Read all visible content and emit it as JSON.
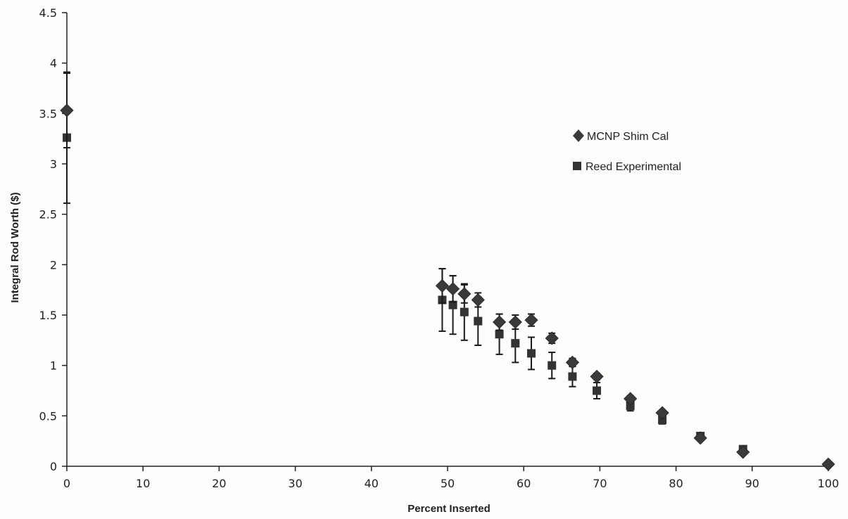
{
  "chart_data": {
    "type": "scatter",
    "title": "",
    "xlabel": "Percent Inserted",
    "ylabel": "Integral Rod Worth ($)",
    "xlim": [
      0,
      100
    ],
    "ylim": [
      0,
      4.5
    ],
    "x_ticks": [
      0,
      10,
      20,
      30,
      40,
      50,
      60,
      70,
      80,
      90,
      100
    ],
    "y_ticks": [
      0,
      0.5,
      1,
      1.5,
      2,
      2.5,
      3,
      3.5,
      4,
      4.5
    ],
    "x_tick_labels": [
      "0",
      "10",
      "20",
      "30",
      "40",
      "50",
      "60",
      "70",
      "80",
      "90",
      "100"
    ],
    "y_tick_labels": [
      "0",
      "0.5",
      "1",
      "1.5",
      "2",
      "2.5",
      "3",
      "3.5",
      "4",
      "4.5"
    ],
    "grid": false,
    "legend_position": "right",
    "series": [
      {
        "name": "MCNP Shim Cal",
        "marker": "diamond",
        "color": "#3a3a3a",
        "points": [
          {
            "x": 0,
            "y": 3.53,
            "err": 0.37
          },
          {
            "x": 49.3,
            "y": 1.79,
            "err": 0.17
          },
          {
            "x": 50.7,
            "y": 1.76,
            "err": 0.13
          },
          {
            "x": 52.2,
            "y": 1.71,
            "err": 0.09
          },
          {
            "x": 54.0,
            "y": 1.65,
            "err": 0.07
          },
          {
            "x": 56.8,
            "y": 1.43,
            "err": 0.08
          },
          {
            "x": 58.9,
            "y": 1.43,
            "err": 0.07
          },
          {
            "x": 61.0,
            "y": 1.45,
            "err": 0.06
          },
          {
            "x": 63.7,
            "y": 1.27,
            "err": 0.05
          },
          {
            "x": 66.4,
            "y": 1.03,
            "err": 0.04
          },
          {
            "x": 69.6,
            "y": 0.89,
            "err": 0.03
          },
          {
            "x": 74.0,
            "y": 0.67,
            "err": 0.03
          },
          {
            "x": 78.2,
            "y": 0.53,
            "err": 0.02
          },
          {
            "x": 83.2,
            "y": 0.28,
            "err": 0.02
          },
          {
            "x": 88.8,
            "y": 0.14,
            "err": 0.01
          },
          {
            "x": 100,
            "y": 0.02,
            "err": 0.0
          }
        ]
      },
      {
        "name": "Reed Experimental",
        "marker": "square",
        "color": "#333333",
        "points": [
          {
            "x": 0,
            "y": 3.26,
            "err": 0.65
          },
          {
            "x": 49.3,
            "y": 1.65,
            "err": 0.31
          },
          {
            "x": 50.7,
            "y": 1.6,
            "err": 0.29
          },
          {
            "x": 52.2,
            "y": 1.53,
            "err": 0.28
          },
          {
            "x": 54.0,
            "y": 1.44,
            "err": 0.24
          },
          {
            "x": 56.8,
            "y": 1.31,
            "err": 0.2
          },
          {
            "x": 58.9,
            "y": 1.22,
            "err": 0.19
          },
          {
            "x": 61.0,
            "y": 1.12,
            "err": 0.16
          },
          {
            "x": 63.7,
            "y": 1.0,
            "err": 0.13
          },
          {
            "x": 66.4,
            "y": 0.89,
            "err": 0.1
          },
          {
            "x": 69.6,
            "y": 0.75,
            "err": 0.08
          },
          {
            "x": 74.0,
            "y": 0.6,
            "err": 0.05
          },
          {
            "x": 78.2,
            "y": 0.46,
            "err": 0.04
          },
          {
            "x": 83.2,
            "y": 0.3,
            "err": 0.03
          },
          {
            "x": 88.8,
            "y": 0.17,
            "err": 0.02
          }
        ]
      }
    ]
  }
}
